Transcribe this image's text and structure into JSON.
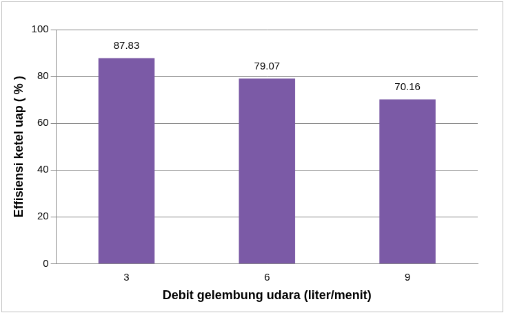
{
  "chart_data": {
    "type": "bar",
    "x_label": "Debit gelembung udara (liter/menit)",
    "y_label": "Effisiensi ketel uap ( % )",
    "categories": [
      "3",
      "6",
      "9"
    ],
    "values": [
      87.83,
      79.07,
      70.16
    ],
    "color": "#7b5aa6",
    "ylim": [
      0,
      100
    ],
    "yticks": [
      0,
      20,
      40,
      60,
      80,
      100
    ],
    "grid": true,
    "data_labels": true
  }
}
